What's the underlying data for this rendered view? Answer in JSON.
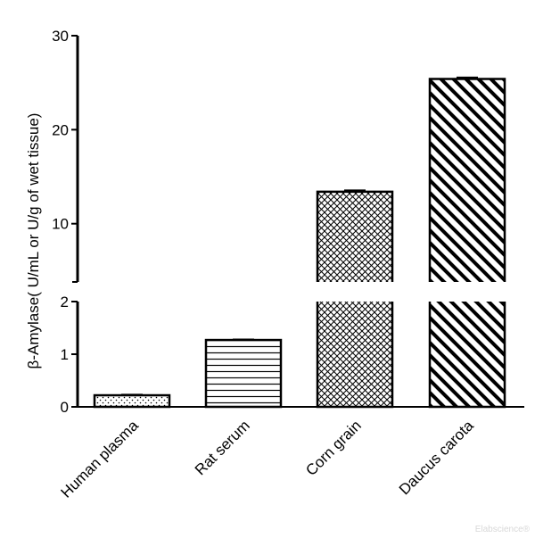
{
  "watermark": "Elabscience®",
  "chart_data": {
    "type": "bar",
    "title": "",
    "ylabel": "β-Amylase( U/mL or U/g of wet tissue)",
    "xlabel": "",
    "categories": [
      "Human plasma",
      "Rat serum",
      "Corn grain",
      "Daucus carota"
    ],
    "values": [
      0.22,
      1.27,
      13.4,
      25.4
    ],
    "errors": [
      0.01,
      0.01,
      0.15,
      0.15
    ],
    "patterns": [
      "dots",
      "horizontal-lines",
      "crosshatch",
      "diagonal-lines"
    ],
    "axis_break": {
      "lower_range": [
        0,
        2
      ],
      "upper_range": [
        2,
        30
      ]
    },
    "lower_ticks": [
      0,
      1,
      2
    ],
    "upper_ticks": [
      10,
      20,
      30
    ],
    "grid": false,
    "bar_color": "#000000"
  }
}
